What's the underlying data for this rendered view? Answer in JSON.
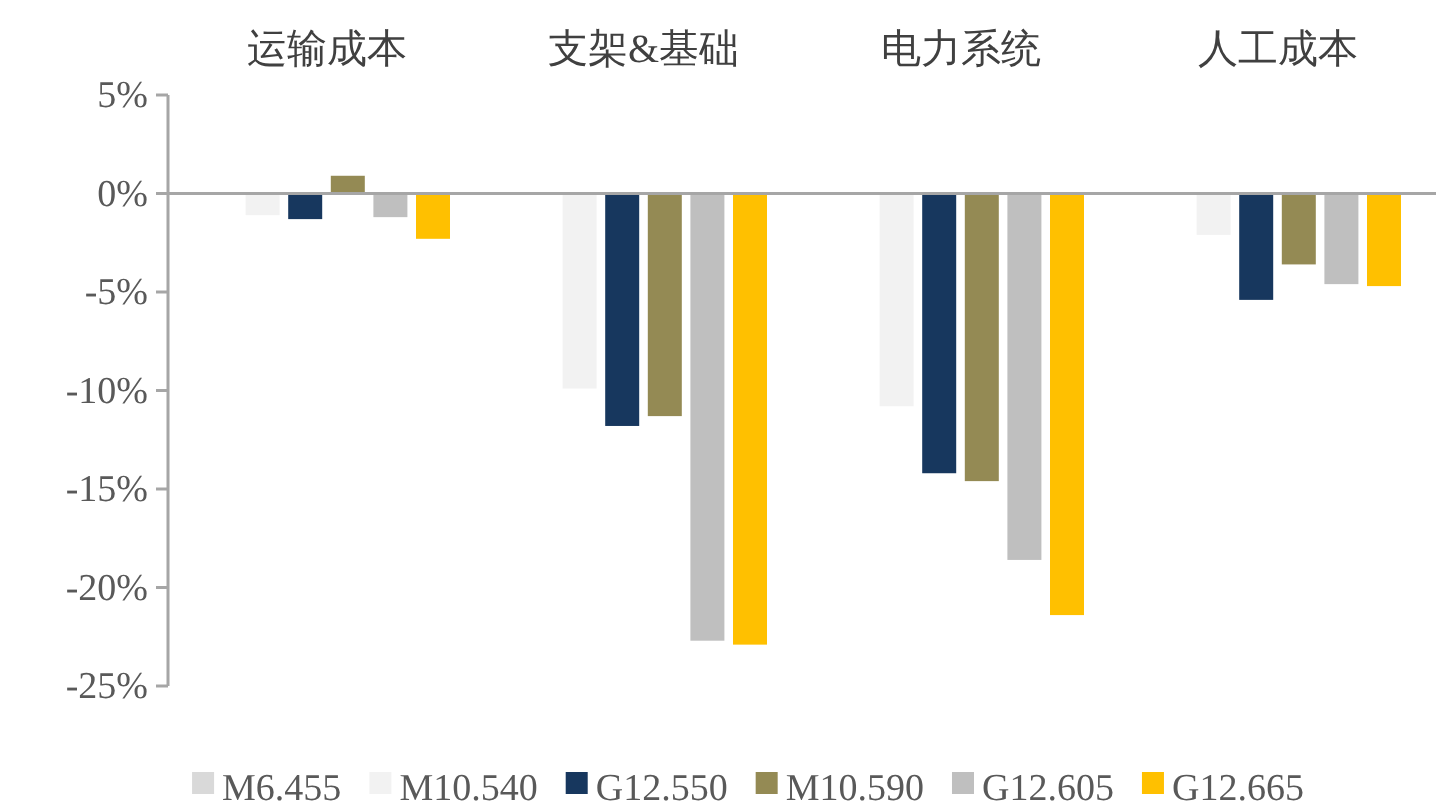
{
  "chart_data": {
    "type": "bar",
    "categories": [
      "运输成本",
      "支架&基础",
      "电力系统",
      "人工成本"
    ],
    "series": [
      {
        "name": "M6.455",
        "color": "#d9d9d9",
        "values": [
          0,
          0,
          0,
          0
        ]
      },
      {
        "name": "M10.540",
        "color": "#f2f2f2",
        "values": [
          -1.1,
          -9.9,
          -10.8,
          -2.1
        ]
      },
      {
        "name": "G12.550",
        "color": "#17375e",
        "values": [
          -1.3,
          -11.8,
          -14.2,
          -5.4
        ]
      },
      {
        "name": "M10.590",
        "color": "#948a54",
        "values": [
          0.9,
          -11.3,
          -14.6,
          -3.6
        ]
      },
      {
        "name": "G12.605",
        "color": "#bfbfbf",
        "values": [
          -1.2,
          -22.7,
          -18.6,
          -4.6
        ]
      },
      {
        "name": "G12.665",
        "color": "#ffc000",
        "values": [
          -2.3,
          -22.9,
          -21.4,
          -4.7
        ]
      }
    ],
    "ylim": [
      -25,
      5
    ],
    "yticks": [
      {
        "value": 5,
        "label": "5%"
      },
      {
        "value": 0,
        "label": "0%"
      },
      {
        "value": -5,
        "label": "-5%"
      },
      {
        "value": -10,
        "label": "-10%"
      },
      {
        "value": -15,
        "label": "-15%"
      },
      {
        "value": -20,
        "label": "-20%"
      },
      {
        "value": -25,
        "label": "-25%"
      }
    ],
    "legend": "bottom"
  }
}
